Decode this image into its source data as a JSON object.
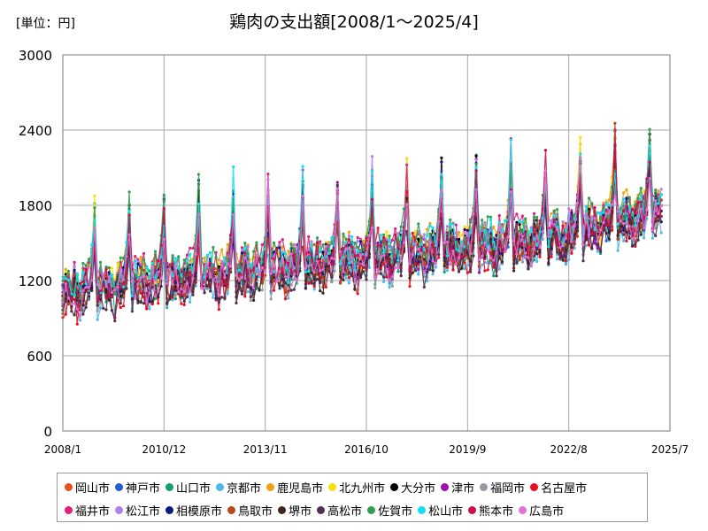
{
  "header": {
    "unit_label": "[単位：円]",
    "title": "鶏肉の支出額[2008/1～2025/4]"
  },
  "chart_data": {
    "type": "line",
    "title": "鶏肉の支出額[2008/1～2025/4]",
    "unit": "[単位：円]",
    "x_range": [
      "2008/1",
      "2025/7"
    ],
    "x_ticks": [
      "2008/1",
      "2010/12",
      "2013/11",
      "2016/10",
      "2019/9",
      "2022/8",
      "2025/7"
    ],
    "ylim": [
      0,
      3000
    ],
    "y_ticks": [
      0,
      600,
      1200,
      1800,
      2400,
      3000
    ],
    "grid": true,
    "legend_position": "bottom",
    "series_note": "Monthly values per city are too dense to read individually; listed values are approximate monthly levels read from the plot for each series.",
    "series": [
      {
        "name": "岡山市",
        "color": "#e8501c"
      },
      {
        "name": "神戸市",
        "color": "#1f5fd6"
      },
      {
        "name": "山口市",
        "color": "#10a070"
      },
      {
        "name": "京都市",
        "color": "#4fb8e8"
      },
      {
        "name": "鹿児島市",
        "color": "#f0a010"
      },
      {
        "name": "北九州市",
        "color": "#f8e010"
      },
      {
        "name": "大分市",
        "color": "#000000"
      },
      {
        "name": "津市",
        "color": "#9a10b0"
      },
      {
        "name": "福岡市",
        "color": "#909aa0"
      },
      {
        "name": "名古屋市",
        "color": "#e81020"
      },
      {
        "name": "福井市",
        "color": "#e0207a"
      },
      {
        "name": "松江市",
        "color": "#b080e8"
      },
      {
        "name": "相模原市",
        "color": "#101880"
      },
      {
        "name": "鳥取市",
        "color": "#b84818"
      },
      {
        "name": "堺市",
        "color": "#3a2820"
      },
      {
        "name": "高松市",
        "color": "#503050"
      },
      {
        "name": "佐賀市",
        "color": "#30a050"
      },
      {
        "name": "松山市",
        "color": "#10e0f0"
      },
      {
        "name": "熊本市",
        "color": "#c81050"
      },
      {
        "name": "広島市",
        "color": "#e070d8"
      }
    ]
  }
}
